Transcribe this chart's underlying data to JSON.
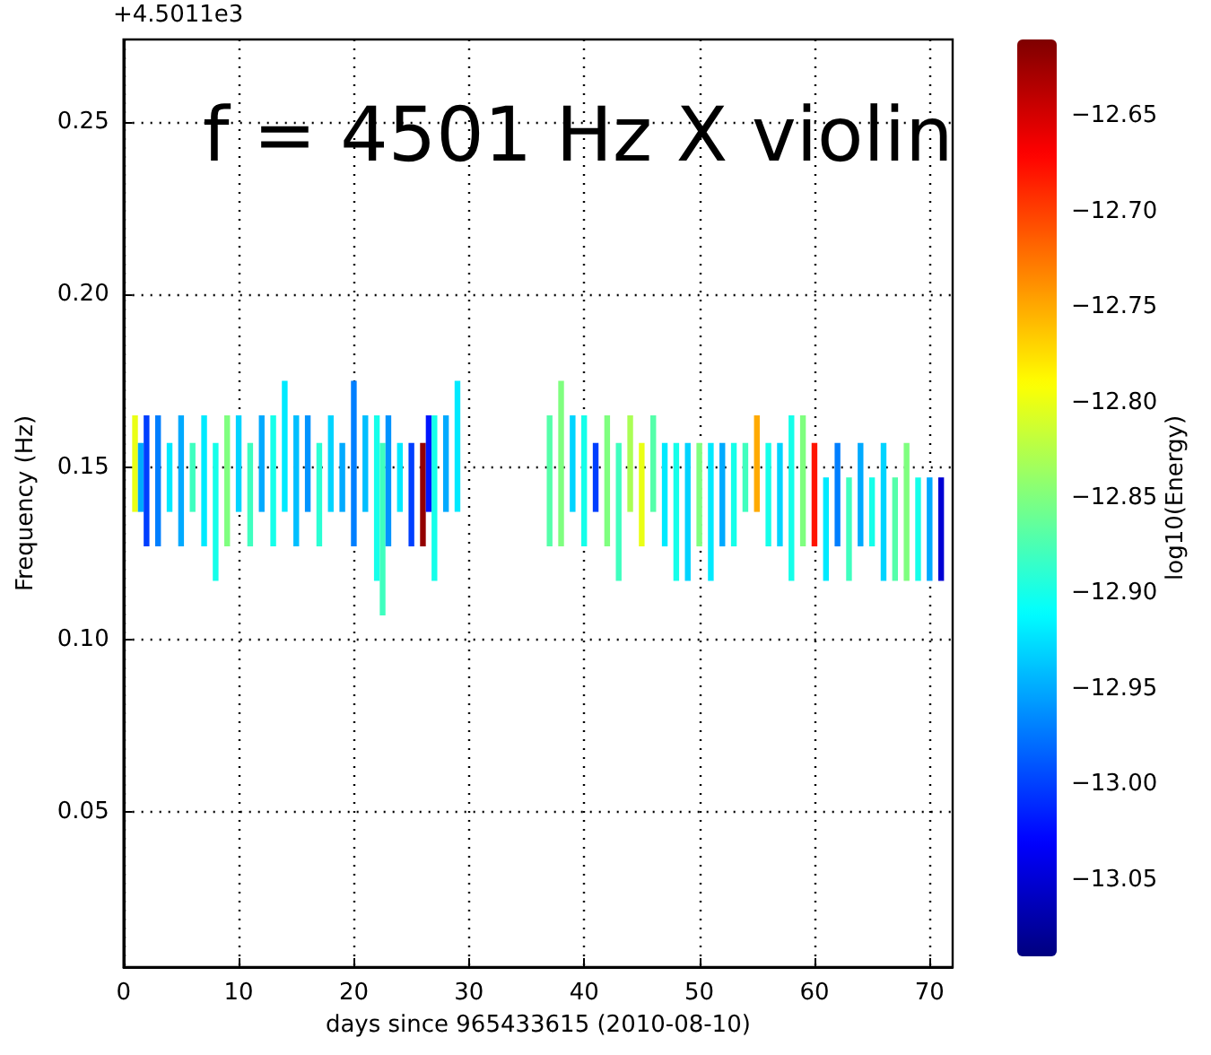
{
  "chart_data": {
    "type": "bar",
    "annotations": [
      "+4.5011e3",
      "f = 4501 Hz X violin"
    ],
    "xlabel": "days since 965433615 (2010-08-10)",
    "ylabel": "Frequency (Hz)",
    "clabel": "log10(Energy)",
    "xlim": [
      0,
      72
    ],
    "xticks": [
      0,
      10,
      20,
      30,
      40,
      50,
      60,
      70
    ],
    "ylim": [
      0.005,
      0.274
    ],
    "yticks": [
      {
        "value": 0.05,
        "label": "0.05"
      },
      {
        "value": 0.1,
        "label": "0.10"
      },
      {
        "value": 0.15,
        "label": "0.15"
      },
      {
        "value": 0.2,
        "label": "0.20"
      },
      {
        "value": 0.25,
        "label": "0.25"
      }
    ],
    "clim": [
      -13.09,
      -12.61
    ],
    "cticks": [
      {
        "value": -13.05,
        "label": "−13.05"
      },
      {
        "value": -13.0,
        "label": "−13.00"
      },
      {
        "value": -12.95,
        "label": "−12.95"
      },
      {
        "value": -12.9,
        "label": "−12.90"
      },
      {
        "value": -12.85,
        "label": "−12.85"
      },
      {
        "value": -12.8,
        "label": "−12.80"
      },
      {
        "value": -12.75,
        "label": "−12.75"
      },
      {
        "value": -12.7,
        "label": "−12.70"
      },
      {
        "value": -12.65,
        "label": "−12.65"
      }
    ],
    "grid": true,
    "x": [
      1,
      1.5,
      2,
      3,
      4,
      5,
      6,
      7,
      8,
      9,
      10,
      11,
      12,
      13,
      14,
      15,
      16,
      17,
      18,
      19,
      20,
      21,
      22,
      22.5,
      23,
      24,
      25,
      26,
      26.5,
      27,
      28,
      29,
      37,
      38,
      39,
      40,
      41,
      42,
      43,
      44,
      45,
      46,
      47,
      48,
      49,
      50,
      51,
      52,
      53,
      54,
      55,
      56,
      57,
      58,
      59,
      60,
      61,
      62,
      63,
      64,
      65,
      66,
      67,
      68,
      69,
      70,
      71
    ],
    "base": [
      0.137,
      0.137,
      0.127,
      0.127,
      0.137,
      0.127,
      0.137,
      0.127,
      0.117,
      0.127,
      0.137,
      0.127,
      0.137,
      0.127,
      0.137,
      0.127,
      0.137,
      0.127,
      0.137,
      0.137,
      0.127,
      0.137,
      0.117,
      0.107,
      0.127,
      0.137,
      0.127,
      0.127,
      0.137,
      0.117,
      0.137,
      0.137,
      0.127,
      0.127,
      0.137,
      0.127,
      0.137,
      0.127,
      0.117,
      0.137,
      0.127,
      0.137,
      0.127,
      0.117,
      0.117,
      0.127,
      0.117,
      0.127,
      0.127,
      0.137,
      0.137,
      0.127,
      0.127,
      0.117,
      0.127,
      0.127,
      0.117,
      0.127,
      0.117,
      0.127,
      0.127,
      0.117,
      0.117,
      0.117,
      0.117,
      0.117,
      0.117
    ],
    "values": [
      0.028,
      0.02,
      0.038,
      0.038,
      0.02,
      0.038,
      0.02,
      0.038,
      0.04,
      0.038,
      0.028,
      0.03,
      0.028,
      0.038,
      0.038,
      0.038,
      0.028,
      0.03,
      0.028,
      0.02,
      0.048,
      0.028,
      0.048,
      0.05,
      0.038,
      0.02,
      0.03,
      0.03,
      0.028,
      0.048,
      0.028,
      0.038,
      0.038,
      0.048,
      0.028,
      0.038,
      0.02,
      0.038,
      0.04,
      0.028,
      0.03,
      0.028,
      0.03,
      0.04,
      0.04,
      0.03,
      0.04,
      0.03,
      0.03,
      0.02,
      0.028,
      0.03,
      0.03,
      0.048,
      0.038,
      0.03,
      0.03,
      0.03,
      0.03,
      0.03,
      0.02,
      0.04,
      0.03,
      0.04,
      0.03,
      0.03,
      0.03
    ],
    "cvalues": [
      -12.8,
      -12.95,
      -13.0,
      -12.97,
      -12.92,
      -12.95,
      -12.88,
      -12.92,
      -12.9,
      -12.85,
      -12.93,
      -12.88,
      -12.95,
      -12.9,
      -12.92,
      -12.94,
      -12.96,
      -12.89,
      -12.93,
      -12.95,
      -12.97,
      -12.94,
      -12.9,
      -12.88,
      -12.96,
      -12.92,
      -13.0,
      -12.62,
      -13.02,
      -12.9,
      -12.95,
      -12.92,
      -12.87,
      -12.85,
      -12.93,
      -12.9,
      -13.0,
      -12.85,
      -12.88,
      -12.83,
      -12.8,
      -12.87,
      -12.92,
      -12.9,
      -12.93,
      -12.85,
      -12.92,
      -12.95,
      -12.9,
      -12.88,
      -12.75,
      -12.9,
      -12.93,
      -12.9,
      -12.85,
      -12.68,
      -12.92,
      -12.97,
      -12.88,
      -12.95,
      -12.9,
      -12.93,
      -12.87,
      -12.85,
      -12.9,
      -12.95,
      -13.05
    ]
  }
}
